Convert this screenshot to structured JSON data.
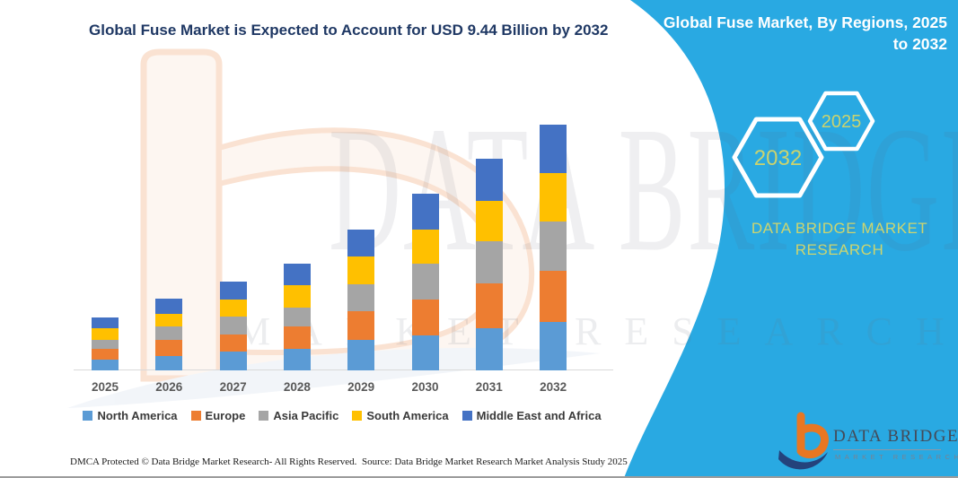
{
  "page": {
    "title": "Global Fuse Market is Expected to Account for USD 9.44 Billion by 2032",
    "banner": {
      "line1": "Global Fuse Market, By Regions, 2025",
      "line2": "to 2032",
      "hex_left_year": "2032",
      "hex_right_year": "2025"
    },
    "brand_text": "DATA BRIDGE MARKET RESEARCH",
    "watermarks": {
      "primary": "DATA BRIDGE",
      "secondary": "MARKET RESEARCH"
    },
    "logo": {
      "name": "DATA BRIDGE",
      "tagline": "MARKET RESEARCH"
    },
    "footer": {
      "left": "DMCA Protected © Data Bridge Market Research-  All Rights Reserved.",
      "right": "Source: Data Bridge Market Research  Market Analysis Study 2025"
    },
    "colors": {
      "banner_blue": "#29A9E2",
      "title_navy": "#1F3864",
      "hex_year_text": "#CBD36E",
      "brand_khaki": "#CDD56F",
      "logo_orange": "#E87722",
      "logo_navy": "#24427C",
      "axis_gray": "#D9D9D9",
      "tick_label_gray": "#595959",
      "legend_text": "#3A3A3A"
    }
  },
  "chart_data": {
    "type": "bar",
    "stacked": true,
    "title": "Global Fuse Market is Expected to Account for USD 9.44 Billion by 2032",
    "xlabel": "",
    "ylabel": "",
    "units": "USD Billion",
    "y_axis_visible": false,
    "gridlines": false,
    "legend_position": "bottom",
    "categories": [
      "2025",
      "2026",
      "2027",
      "2028",
      "2029",
      "2030",
      "2031",
      "2032"
    ],
    "series": [
      {
        "name": "North America",
        "color": "#5B9BD5",
        "values": [
          0.41,
          0.55,
          0.72,
          0.83,
          1.17,
          1.34,
          1.62,
          1.86
        ]
      },
      {
        "name": "Europe",
        "color": "#ED7D31",
        "values": [
          0.41,
          0.62,
          0.65,
          0.86,
          1.1,
          1.38,
          1.72,
          1.96
        ]
      },
      {
        "name": "Asia Pacific",
        "color": "#A5A5A5",
        "values": [
          0.34,
          0.52,
          0.69,
          0.72,
          1.03,
          1.38,
          1.62,
          1.9
        ]
      },
      {
        "name": "South America",
        "color": "#FFC000",
        "values": [
          0.45,
          0.48,
          0.65,
          0.86,
          1.07,
          1.31,
          1.55,
          1.86
        ]
      },
      {
        "name": "Middle East and Africa",
        "color": "#4472C4",
        "values": [
          0.41,
          0.59,
          0.69,
          0.83,
          1.03,
          1.38,
          1.62,
          1.86
        ]
      }
    ],
    "totals": [
      2.02,
      2.76,
      3.4,
      4.1,
      5.4,
      6.79,
      8.13,
      9.44
    ]
  }
}
